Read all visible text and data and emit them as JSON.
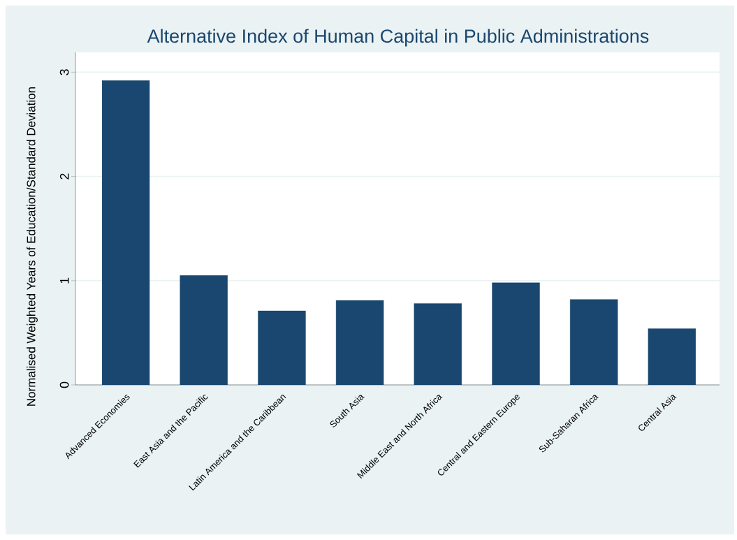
{
  "chart_data": {
    "type": "bar",
    "title": "Alternative Index of Human Capital in Public Administrations",
    "ylabel": "Normalised Weighted Years of Education/Standard Deviation",
    "categories": [
      "Advanced Economies",
      "East Asia and the Pacific",
      "Latin America and the Caribbean",
      "South Asia",
      "Middle East and North Africa",
      "Central and Eastern Europe",
      "Sub-Saharan Africa",
      "Central Asia"
    ],
    "values": [
      2.92,
      1.05,
      0.71,
      0.81,
      0.78,
      0.98,
      0.82,
      0.54
    ],
    "color": "#1a476f",
    "ylim": [
      0,
      3.19
    ],
    "yticks": [
      0,
      1,
      2,
      3
    ],
    "grid": "y"
  }
}
